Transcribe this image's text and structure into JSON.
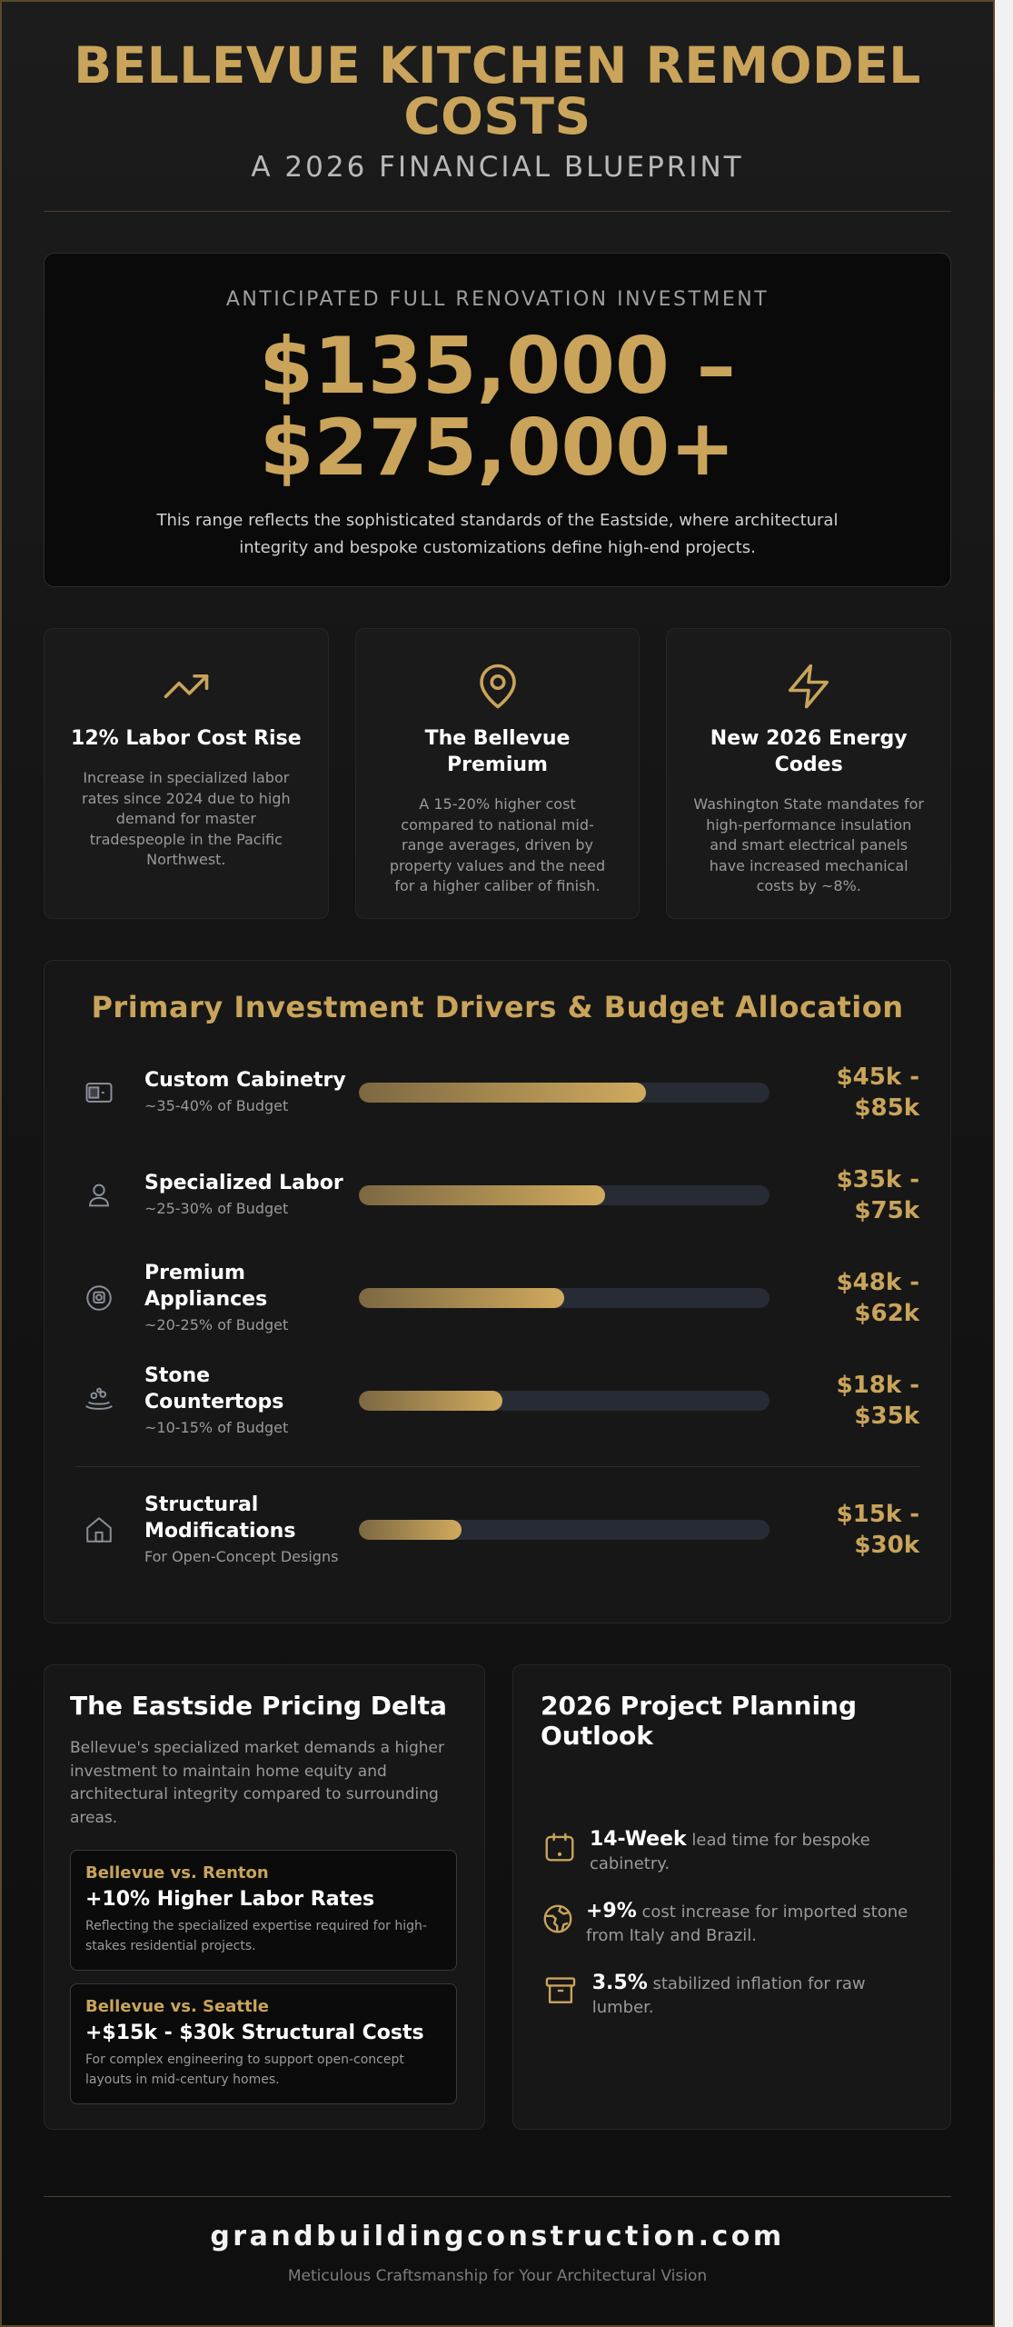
{
  "header": {
    "title": "BELLEVUE KITCHEN REMODEL COSTS",
    "subtitle": "A 2026 FINANCIAL BLUEPRINT"
  },
  "hero": {
    "kicker": "ANTICIPATED FULL RENOVATION INVESTMENT",
    "range_low": "$135,000 –",
    "range_high": "$275,000+",
    "description": "This range reflects the sophisticated standards of the Eastside, where architectural integrity and bespoke customizations define high-end projects."
  },
  "stats": [
    {
      "icon": "trending-up-icon",
      "title": "12% Labor Cost Rise",
      "text": "Increase in specialized labor rates since 2024 due to high demand for master tradespeople in the Pacific Northwest."
    },
    {
      "icon": "map-pin-icon",
      "title": "The Bellevue Premium",
      "text": "A 15-20% higher cost compared to national mid-range averages, driven by property values and the need for a higher caliber of finish."
    },
    {
      "icon": "lightning-icon",
      "title": "New 2026 Energy Codes",
      "text": "Washington State mandates for high-performance insulation and smart electrical panels have increased mechanical costs by ~8%."
    }
  ],
  "drivers": {
    "heading": "Primary Investment Drivers & Budget Allocation",
    "items": [
      {
        "icon": "cabinet-icon",
        "title": "Custom Cabinetry",
        "share": "~35-40% of Budget",
        "level": 0.7,
        "range": "$45k - $85k"
      },
      {
        "icon": "person-icon",
        "title": "Specialized Labor",
        "share": "~25-30% of Budget",
        "level": 0.6,
        "range": "$35k - $75k"
      },
      {
        "icon": "appliance-icon",
        "title": "Premium Appliances",
        "share": "~20-25% of Budget",
        "level": 0.5,
        "range": "$48k - $62k"
      },
      {
        "icon": "countertop-icon",
        "title": "Stone Countertops",
        "share": "~10-15% of Budget",
        "level": 0.35,
        "range": "$18k - $35k"
      }
    ],
    "extra": {
      "icon": "home-icon",
      "title": "Structural Modifications",
      "share": "For Open-Concept Designs",
      "level": 0.25,
      "range": "$15k - $30k"
    }
  },
  "delta": {
    "heading": "The Eastside Pricing Delta",
    "intro": "Bellevue's specialized market demands a higher investment to maintain home equity and architectural integrity compared to surrounding areas.",
    "comparisons": [
      {
        "vs": "Bellevue vs. Renton",
        "headline": "+10% Higher Labor Rates",
        "note": "Reflecting the specialized expertise required for high-stakes residential projects."
      },
      {
        "vs": "Bellevue vs. Seattle",
        "headline": "+$15k - $30k Structural Costs",
        "note": "For complex engineering to support open-concept layouts in mid-century homes."
      }
    ]
  },
  "outlook": {
    "heading": "2026 Project Planning Outlook",
    "items": [
      {
        "icon": "calendar-icon",
        "bold": "14-Week",
        "text": " lead time for bespoke cabinetry."
      },
      {
        "icon": "globe-icon",
        "bold": "+9%",
        "text": " cost increase for imported stone from Italy and Brazil."
      },
      {
        "icon": "archive-box-icon",
        "bold": "3.5%",
        "text": " stabilized inflation for raw lumber."
      }
    ]
  },
  "footer": {
    "site": "grandbuildingconstruction.com",
    "tagline": "Meticulous Craftsmanship for Your Architectural Vision"
  },
  "colors": {
    "gold": "#c9a45a",
    "background": "#141414",
    "bar_track": "#272b33"
  }
}
